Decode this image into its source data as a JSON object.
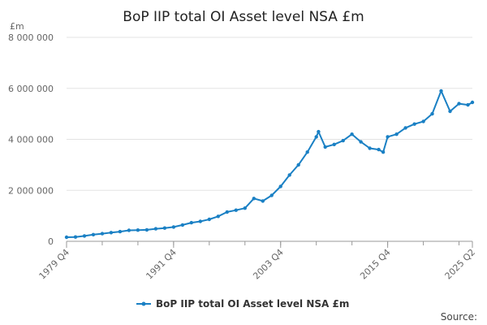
{
  "chart_data": {
    "type": "line",
    "title": "BoP IIP total OI Asset level NSA £m",
    "ylabel": "£m",
    "xlabel": "",
    "ylim": [
      0,
      8000000
    ],
    "y_ticks": [
      {
        "value": 0,
        "label": "0"
      },
      {
        "value": 2000000,
        "label": "2 000 000"
      },
      {
        "value": 4000000,
        "label": "4 000 000"
      },
      {
        "value": 6000000,
        "label": "6 000 000"
      },
      {
        "value": 8000000,
        "label": "8 000 000"
      }
    ],
    "x_ticks": [
      "1979 Q4",
      "1991 Q4",
      "2003 Q4",
      "2015 Q4",
      "2025 Q2"
    ],
    "x_range": [
      "1979 Q4",
      "2025 Q2"
    ],
    "grid": "horizontal",
    "legend_position": "bottom",
    "series": [
      {
        "name": "BoP IIP total OI Asset level NSA £m",
        "color": "#1a80c4",
        "points": [
          [
            "1979 Q4",
            160000
          ],
          [
            "1980 Q4",
            170000
          ],
          [
            "1981 Q4",
            210000
          ],
          [
            "1982 Q4",
            260000
          ],
          [
            "1983 Q4",
            300000
          ],
          [
            "1984 Q4",
            340000
          ],
          [
            "1985 Q4",
            380000
          ],
          [
            "1986 Q4",
            430000
          ],
          [
            "1987 Q4",
            440000
          ],
          [
            "1988 Q4",
            450000
          ],
          [
            "1989 Q4",
            490000
          ],
          [
            "1990 Q4",
            520000
          ],
          [
            "1991 Q4",
            560000
          ],
          [
            "1992 Q4",
            640000
          ],
          [
            "1993 Q4",
            730000
          ],
          [
            "1994 Q4",
            780000
          ],
          [
            "1995 Q4",
            860000
          ],
          [
            "1996 Q4",
            980000
          ],
          [
            "1997 Q4",
            1150000
          ],
          [
            "1998 Q4",
            1220000
          ],
          [
            "1999 Q4",
            1300000
          ],
          [
            "2000 Q4",
            1680000
          ],
          [
            "2001 Q4",
            1580000
          ],
          [
            "2002 Q4",
            1800000
          ],
          [
            "2003 Q4",
            2150000
          ],
          [
            "2004 Q4",
            2600000
          ],
          [
            "2005 Q4",
            3000000
          ],
          [
            "2006 Q4",
            3500000
          ],
          [
            "2007 Q4",
            4100000
          ],
          [
            "2008 Q1",
            4300000
          ],
          [
            "2008 Q4",
            3700000
          ],
          [
            "2009 Q4",
            3800000
          ],
          [
            "2010 Q4",
            3950000
          ],
          [
            "2011 Q4",
            4200000
          ],
          [
            "2012 Q4",
            3900000
          ],
          [
            "2013 Q4",
            3650000
          ],
          [
            "2014 Q4",
            3600000
          ],
          [
            "2015 Q2",
            3500000
          ],
          [
            "2015 Q4",
            4100000
          ],
          [
            "2016 Q4",
            4200000
          ],
          [
            "2017 Q4",
            4450000
          ],
          [
            "2018 Q4",
            4600000
          ],
          [
            "2019 Q4",
            4700000
          ],
          [
            "2020 Q4",
            5000000
          ],
          [
            "2021 Q4",
            5900000
          ],
          [
            "2022 Q4",
            5100000
          ],
          [
            "2023 Q4",
            5400000
          ],
          [
            "2024 Q4",
            5350000
          ],
          [
            "2025 Q2",
            5450000
          ]
        ]
      }
    ]
  },
  "footer": {
    "source_label": "Source:"
  }
}
